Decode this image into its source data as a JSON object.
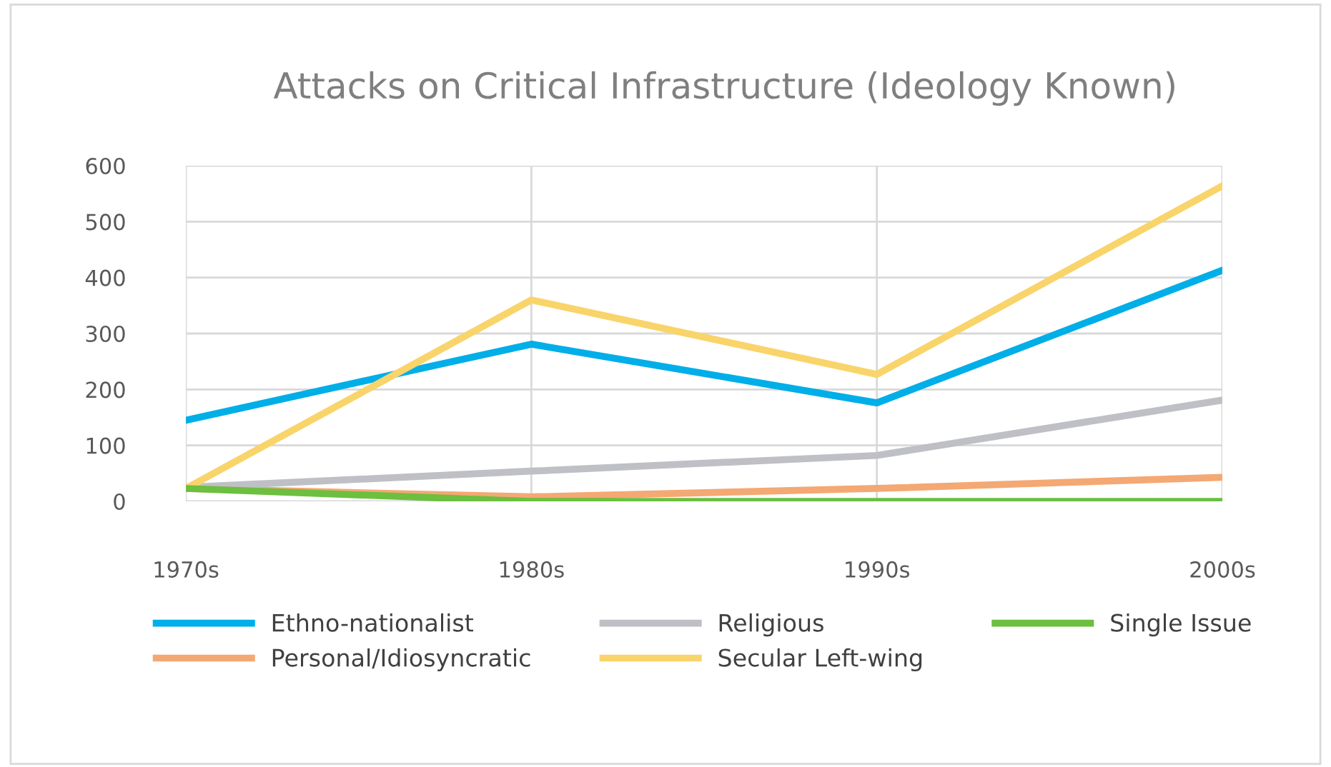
{
  "chart_data": {
    "type": "line",
    "title": "Attacks on Critical Infrastructure (Ideology Known)",
    "categories": [
      "1970s",
      "1980s",
      "1990s",
      "2000s"
    ],
    "series": [
      {
        "name": "Ethno-nationalist",
        "color": "#00aee8",
        "values": [
          145,
          281,
          176,
          413
        ]
      },
      {
        "name": "Personal/Idiosyncratic",
        "color": "#f4a873",
        "values": [
          23,
          8,
          23,
          43
        ]
      },
      {
        "name": "Religious",
        "color": "#bfc0c6",
        "values": [
          25,
          54,
          82,
          181
        ]
      },
      {
        "name": "Secular Left-wing",
        "color": "#f9d46a",
        "values": [
          23,
          360,
          227,
          564
        ]
      },
      {
        "name": "Single Issue",
        "color": "#6cbf3f",
        "values": [
          23,
          0,
          0,
          0
        ]
      }
    ],
    "ylim": [
      0,
      600
    ],
    "yticks": [
      0,
      100,
      200,
      300,
      400,
      500,
      600
    ],
    "grid": true,
    "legend": "bottom",
    "marker": "none",
    "line_style": "solid"
  }
}
